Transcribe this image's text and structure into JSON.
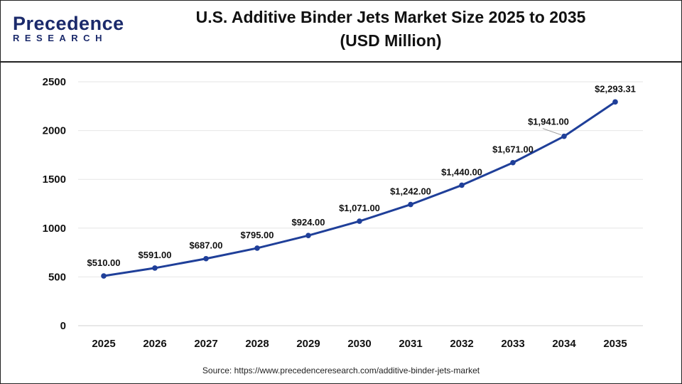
{
  "header": {
    "logo_main": "Precedence",
    "logo_sub": "RESEARCH",
    "title_line1": "U.S. Additive Binder Jets Market Size 2025 to 2035",
    "title_line2": "(USD Million)"
  },
  "source": "Source: https://www.precedenceresearch.com/additive-binder-jets-market",
  "chart_data": {
    "type": "line",
    "title": "U.S. Additive Binder Jets Market Size 2025 to 2035 (USD Million)",
    "categories": [
      "2025",
      "2026",
      "2027",
      "2028",
      "2029",
      "2030",
      "2031",
      "2032",
      "2033",
      "2034",
      "2035"
    ],
    "values": [
      510.0,
      591.0,
      687.0,
      795.0,
      924.0,
      1071.0,
      1242.0,
      1440.0,
      1671.0,
      1941.0,
      2293.31
    ],
    "data_labels": [
      "$510.00",
      "$591.00",
      "$687.00",
      "$795.00",
      "$924.00",
      "$1,071.00",
      "$1,242.00",
      "$1,440.00",
      "$1,671.00",
      "$1,941.00",
      "$2,293.31"
    ],
    "yticks": [
      0,
      500,
      1000,
      1500,
      2000,
      2500
    ],
    "ylim": [
      0,
      2500
    ],
    "grid": true,
    "line_color": "#1f3f99"
  }
}
